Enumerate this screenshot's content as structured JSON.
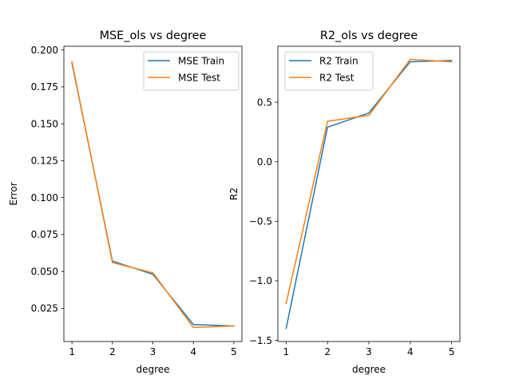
{
  "chart_data": [
    {
      "type": "line",
      "title": "MSE_ols vs degree",
      "xlabel": "degree",
      "ylabel": "Error",
      "x": [
        1,
        2,
        3,
        4,
        5
      ],
      "xticks": [
        "1",
        "2",
        "3",
        "4",
        "5"
      ],
      "yticks": [
        "0.025",
        "0.050",
        "0.075",
        "0.100",
        "0.125",
        "0.150",
        "0.175",
        "0.200"
      ],
      "xlim": [
        0.8,
        5.2
      ],
      "ylim": [
        0.0025,
        0.2025
      ],
      "grid": false,
      "legend_position": "top-right",
      "series": [
        {
          "name": "MSE Train",
          "color": "#1f77b4",
          "values": [
            0.191,
            0.057,
            0.048,
            0.014,
            0.013
          ]
        },
        {
          "name": "MSE Test",
          "color": "#ff7f0e",
          "values": [
            0.192,
            0.056,
            0.049,
            0.012,
            0.013
          ]
        }
      ]
    },
    {
      "type": "line",
      "title": "R2_ols vs degree",
      "xlabel": "degree",
      "ylabel": "R2",
      "x": [
        1,
        2,
        3,
        4,
        5
      ],
      "xticks": [
        "1",
        "2",
        "3",
        "4",
        "5"
      ],
      "yticks": [
        "−1.5",
        "−1.0",
        "−0.5",
        "0.0",
        "0.5"
      ],
      "xlim": [
        0.8,
        5.2
      ],
      "ylim": [
        -1.51,
        0.97
      ],
      "grid": false,
      "legend_position": "top-left",
      "series": [
        {
          "name": "R2 Train",
          "color": "#1f77b4",
          "values": [
            -1.4,
            0.29,
            0.41,
            0.84,
            0.85
          ]
        },
        {
          "name": "R2 Test",
          "color": "#ff7f0e",
          "values": [
            -1.19,
            0.34,
            0.39,
            0.86,
            0.84
          ]
        }
      ]
    }
  ]
}
